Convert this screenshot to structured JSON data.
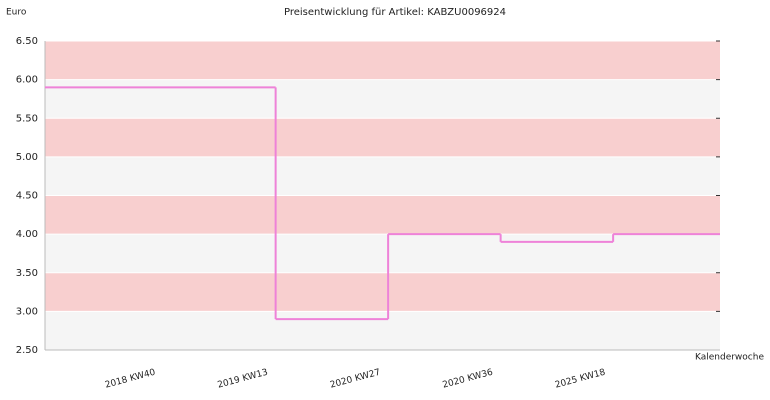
{
  "chart_data": {
    "type": "step",
    "title": "Preisentwicklung für Artikel: KABZU0096924",
    "y_label": "Euro",
    "x_label": "Kalenderwoche",
    "categories": [
      "2018 KW40",
      "2019 KW13",
      "2020 KW27",
      "2020 KW36",
      "2025 KW18"
    ],
    "values": [
      5.9,
      2.9,
      4.0,
      3.9,
      4.0
    ],
    "color": "#ee82d8",
    "band_colors": [
      "#f8cfcf",
      "#f5f5f5"
    ],
    "ylim": [
      2.5,
      6.5
    ],
    "yticks": [
      {
        "value": 2.5,
        "label": "2.50"
      },
      {
        "value": 3.0,
        "label": "3.00"
      },
      {
        "value": 3.5,
        "label": "3.50"
      },
      {
        "value": 4.0,
        "label": "4.00"
      },
      {
        "value": 4.5,
        "label": "4.50"
      },
      {
        "value": 5.0,
        "label": "5.00"
      },
      {
        "value": 5.5,
        "label": "5.50"
      },
      {
        "value": 6.0,
        "label": "6.00"
      },
      {
        "value": 6.5,
        "label": "6.50"
      }
    ]
  }
}
